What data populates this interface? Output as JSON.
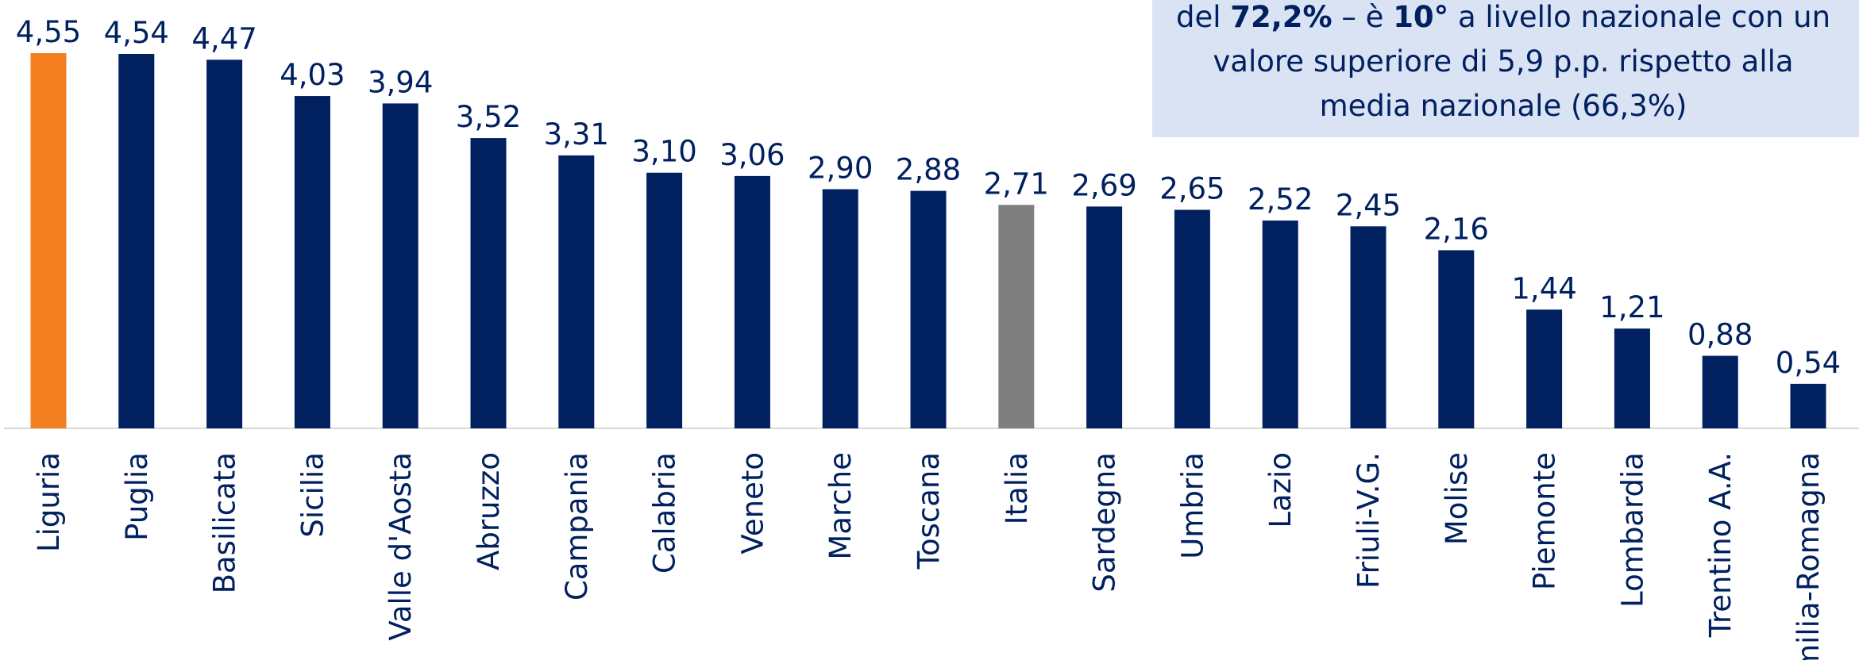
{
  "chart_data": {
    "type": "bar",
    "categories": [
      "Liguria",
      "Puglia",
      "Basilicata",
      "Sicilia",
      "Valle d'Aosta",
      "Abruzzo",
      "Campania",
      "Calabria",
      "Veneto",
      "Marche",
      "Toscana",
      "Italia",
      "Sardegna",
      "Umbria",
      "Lazio",
      "Friuli-V.G.",
      "Molise",
      "Piemonte",
      "Lombardia",
      "Trentino A.A.",
      "Emilia-Romagna"
    ],
    "values": [
      4.55,
      4.54,
      4.47,
      4.03,
      3.94,
      3.52,
      3.31,
      3.1,
      3.06,
      2.9,
      2.88,
      2.71,
      2.69,
      2.65,
      2.52,
      2.45,
      2.16,
      1.44,
      1.21,
      0.88,
      0.54
    ],
    "value_labels": [
      "4,55",
      "4,54",
      "4,47",
      "4,03",
      "3,94",
      "3,52",
      "3,31",
      "3,10",
      "3,06",
      "2,90",
      "2,88",
      "2,71",
      "2,69",
      "2,65",
      "2,52",
      "2,45",
      "2,16",
      "1,44",
      "1,21",
      "0,88",
      "0,54"
    ],
    "colors": [
      "#f47f20",
      "#002060",
      "#002060",
      "#002060",
      "#002060",
      "#002060",
      "#002060",
      "#002060",
      "#002060",
      "#002060",
      "#002060",
      "#7f7f7f",
      "#002060",
      "#002060",
      "#002060",
      "#002060",
      "#002060",
      "#002060",
      "#002060",
      "#002060",
      "#002060"
    ],
    "annotation": [
      [
        {
          "text": "del ",
          "bold": false
        },
        {
          "text": "72,2%",
          "bold": true
        },
        {
          "text": " – è ",
          "bold": false
        },
        {
          "text": "10°",
          "bold": true
        },
        {
          "text": " a livello nazionale con un",
          "bold": false
        }
      ],
      [
        {
          "text": "valore superiore di 5,9 p.p. rispetto alla",
          "bold": false
        }
      ],
      [
        {
          "text": "media nazionale (66,3%)",
          "bold": false
        }
      ]
    ]
  }
}
